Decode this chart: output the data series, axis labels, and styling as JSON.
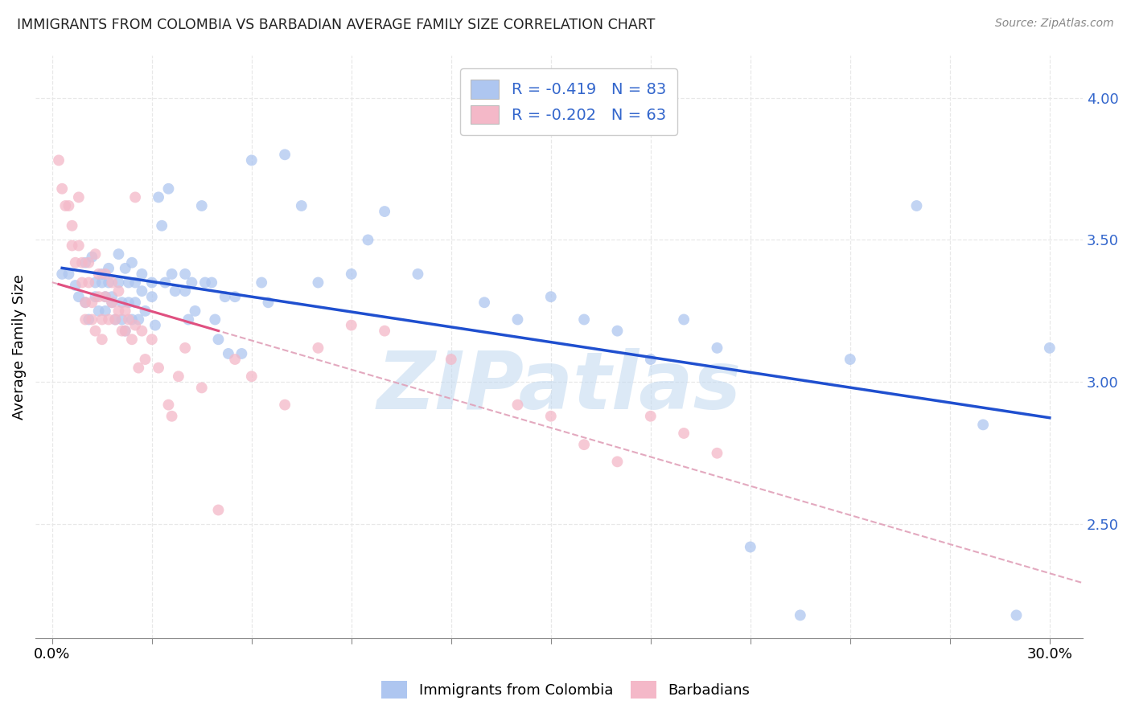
{
  "title": "IMMIGRANTS FROM COLOMBIA VS BARBADIAN AVERAGE FAMILY SIZE CORRELATION CHART",
  "source": "Source: ZipAtlas.com",
  "ylabel": "Average Family Size",
  "right_yticks": [
    2.5,
    3.0,
    3.5,
    4.0
  ],
  "legend_box1_color": "#aec6f0",
  "legend_box2_color": "#f4b8c8",
  "legend_text_color": "#3366cc",
  "legend_r1": "-0.419",
  "legend_n1": "83",
  "legend_r2": "-0.202",
  "legend_n2": "63",
  "watermark": "ZIPatlas",
  "watermark_color": "#c0d8f0",
  "scatter_blue_color": "#aec6f0",
  "scatter_pink_color": "#f4b8c8",
  "trendline_blue_color": "#1f4fcf",
  "trendline_pink_color": "#e05080",
  "trendline_dashed_color": "#e0a0b8",
  "colombia_scatter": [
    [
      0.3,
      3.38
    ],
    [
      0.5,
      3.38
    ],
    [
      0.7,
      3.34
    ],
    [
      0.8,
      3.3
    ],
    [
      1.0,
      3.42
    ],
    [
      1.0,
      3.28
    ],
    [
      1.1,
      3.22
    ],
    [
      1.2,
      3.44
    ],
    [
      1.3,
      3.35
    ],
    [
      1.3,
      3.3
    ],
    [
      1.4,
      3.25
    ],
    [
      1.5,
      3.38
    ],
    [
      1.5,
      3.35
    ],
    [
      1.6,
      3.3
    ],
    [
      1.6,
      3.25
    ],
    [
      1.7,
      3.4
    ],
    [
      1.7,
      3.35
    ],
    [
      1.8,
      3.3
    ],
    [
      1.8,
      3.28
    ],
    [
      1.9,
      3.22
    ],
    [
      2.0,
      3.45
    ],
    [
      2.0,
      3.35
    ],
    [
      2.1,
      3.28
    ],
    [
      2.1,
      3.22
    ],
    [
      2.2,
      3.18
    ],
    [
      2.2,
      3.4
    ],
    [
      2.3,
      3.35
    ],
    [
      2.3,
      3.28
    ],
    [
      2.4,
      3.22
    ],
    [
      2.4,
      3.42
    ],
    [
      2.5,
      3.35
    ],
    [
      2.5,
      3.28
    ],
    [
      2.6,
      3.22
    ],
    [
      2.7,
      3.38
    ],
    [
      2.7,
      3.32
    ],
    [
      2.8,
      3.25
    ],
    [
      3.0,
      3.35
    ],
    [
      3.0,
      3.3
    ],
    [
      3.1,
      3.2
    ],
    [
      3.2,
      3.65
    ],
    [
      3.3,
      3.55
    ],
    [
      3.4,
      3.35
    ],
    [
      3.5,
      3.68
    ],
    [
      3.6,
      3.38
    ],
    [
      3.7,
      3.32
    ],
    [
      4.0,
      3.38
    ],
    [
      4.0,
      3.32
    ],
    [
      4.1,
      3.22
    ],
    [
      4.2,
      3.35
    ],
    [
      4.3,
      3.25
    ],
    [
      4.5,
      3.62
    ],
    [
      4.6,
      3.35
    ],
    [
      4.8,
      3.35
    ],
    [
      4.9,
      3.22
    ],
    [
      5.0,
      3.15
    ],
    [
      5.2,
      3.3
    ],
    [
      5.3,
      3.1
    ],
    [
      5.5,
      3.3
    ],
    [
      5.7,
      3.1
    ],
    [
      6.0,
      3.78
    ],
    [
      6.3,
      3.35
    ],
    [
      6.5,
      3.28
    ],
    [
      7.0,
      3.8
    ],
    [
      7.5,
      3.62
    ],
    [
      8.0,
      3.35
    ],
    [
      9.0,
      3.38
    ],
    [
      9.5,
      3.5
    ],
    [
      10.0,
      3.6
    ],
    [
      11.0,
      3.38
    ],
    [
      13.0,
      3.28
    ],
    [
      14.0,
      3.22
    ],
    [
      15.0,
      3.3
    ],
    [
      16.0,
      3.22
    ],
    [
      17.0,
      3.18
    ],
    [
      18.0,
      3.08
    ],
    [
      19.0,
      3.22
    ],
    [
      20.0,
      3.12
    ],
    [
      21.0,
      2.42
    ],
    [
      22.5,
      2.18
    ],
    [
      24.0,
      3.08
    ],
    [
      26.0,
      3.62
    ],
    [
      28.0,
      2.85
    ],
    [
      29.0,
      2.18
    ],
    [
      30.0,
      3.12
    ]
  ],
  "barbadian_scatter": [
    [
      0.2,
      3.78
    ],
    [
      0.3,
      3.68
    ],
    [
      0.4,
      3.62
    ],
    [
      0.5,
      3.62
    ],
    [
      0.6,
      3.55
    ],
    [
      0.6,
      3.48
    ],
    [
      0.7,
      3.42
    ],
    [
      0.8,
      3.65
    ],
    [
      0.8,
      3.48
    ],
    [
      0.9,
      3.42
    ],
    [
      0.9,
      3.35
    ],
    [
      1.0,
      3.28
    ],
    [
      1.0,
      3.22
    ],
    [
      1.1,
      3.42
    ],
    [
      1.1,
      3.35
    ],
    [
      1.2,
      3.28
    ],
    [
      1.2,
      3.22
    ],
    [
      1.3,
      3.18
    ],
    [
      1.3,
      3.45
    ],
    [
      1.4,
      3.38
    ],
    [
      1.4,
      3.3
    ],
    [
      1.5,
      3.22
    ],
    [
      1.5,
      3.15
    ],
    [
      1.6,
      3.38
    ],
    [
      1.6,
      3.3
    ],
    [
      1.7,
      3.22
    ],
    [
      1.8,
      3.35
    ],
    [
      1.8,
      3.28
    ],
    [
      1.9,
      3.22
    ],
    [
      2.0,
      3.32
    ],
    [
      2.0,
      3.25
    ],
    [
      2.1,
      3.18
    ],
    [
      2.2,
      3.25
    ],
    [
      2.2,
      3.18
    ],
    [
      2.3,
      3.22
    ],
    [
      2.4,
      3.15
    ],
    [
      2.5,
      3.65
    ],
    [
      2.5,
      3.2
    ],
    [
      2.6,
      3.05
    ],
    [
      2.7,
      3.18
    ],
    [
      2.8,
      3.08
    ],
    [
      3.0,
      3.15
    ],
    [
      3.2,
      3.05
    ],
    [
      3.5,
      2.92
    ],
    [
      3.6,
      2.88
    ],
    [
      3.8,
      3.02
    ],
    [
      4.0,
      3.12
    ],
    [
      4.5,
      2.98
    ],
    [
      5.0,
      2.55
    ],
    [
      5.5,
      3.08
    ],
    [
      6.0,
      3.02
    ],
    [
      7.0,
      2.92
    ],
    [
      8.0,
      3.12
    ],
    [
      9.0,
      3.2
    ],
    [
      10.0,
      3.18
    ],
    [
      12.0,
      3.08
    ],
    [
      14.0,
      2.92
    ],
    [
      15.0,
      2.88
    ],
    [
      16.0,
      2.78
    ],
    [
      17.0,
      2.72
    ],
    [
      18.0,
      2.88
    ],
    [
      19.0,
      2.82
    ],
    [
      20.0,
      2.75
    ]
  ],
  "xlim": [
    -0.5,
    31.0
  ],
  "ylim": [
    2.1,
    4.15
  ],
  "xticks": [
    0,
    3,
    6,
    9,
    12,
    15,
    18,
    21,
    24,
    27,
    30
  ],
  "xtick_labels_show": [
    0,
    30
  ],
  "background_color": "#ffffff",
  "grid_color": "#e8e8e8",
  "scatter_size": 100,
  "scatter_alpha": 0.75,
  "legend_fontsize": 14
}
